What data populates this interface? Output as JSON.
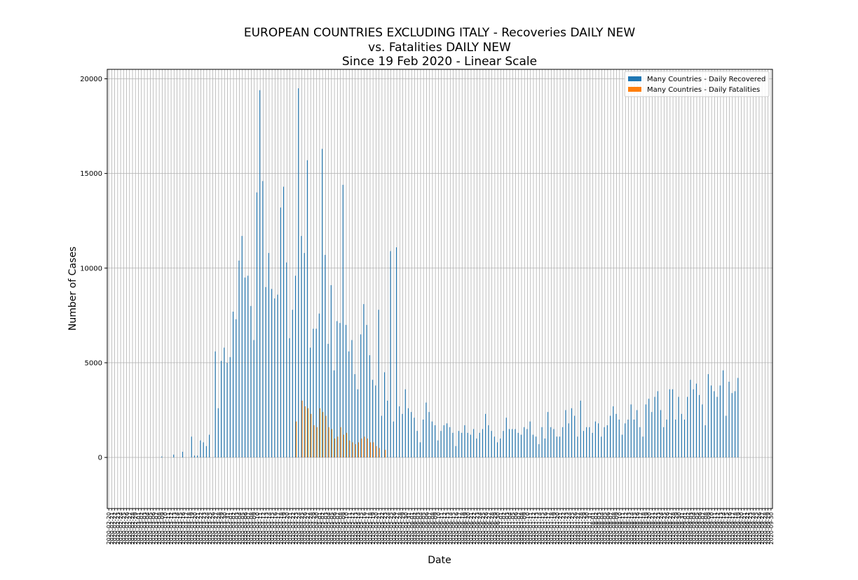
{
  "chart_data": {
    "type": "bar",
    "title_lines": [
      "EUROPEAN COUNTRIES EXCLUDING ITALY - Recoveries DAILY NEW",
      "vs. Fatalities DAILY NEW",
      "Since 19 Feb 2020 - Linear Scale"
    ],
    "xlabel": "Date",
    "ylabel": "Number of Cases",
    "ylim": [
      -2700,
      20500
    ],
    "yticks": [
      0,
      5000,
      10000,
      15000,
      20000
    ],
    "grid": true,
    "legend_position": "top-right",
    "x_start_label": "2020-02-20",
    "x_end_label": "2020-09-17",
    "series": [
      {
        "name": "Many Countries - Daily Recovered",
        "color": "#1f77b4",
        "values": [
          0,
          0,
          0,
          0,
          0,
          0,
          0,
          0,
          0,
          0,
          0,
          0,
          0,
          0,
          0,
          0,
          0,
          0,
          50,
          0,
          0,
          0,
          150,
          0,
          0,
          300,
          0,
          0,
          1100,
          100,
          100,
          900,
          800,
          600,
          1200,
          0,
          5600,
          2600,
          5100,
          5800,
          5000,
          5300,
          7700,
          7300,
          10400,
          11700,
          9500,
          9600,
          8000,
          6200,
          14000,
          19400,
          14600,
          9000,
          10800,
          8900,
          8400,
          8600,
          13200,
          14300,
          10300,
          6300,
          7800,
          9600,
          19500,
          11700,
          10800,
          15700,
          5800,
          6800,
          6800,
          7600,
          16300,
          10700,
          6000,
          9100,
          4600,
          7200,
          7100,
          14400,
          7000,
          5600,
          6200,
          4400,
          3600,
          6500,
          8100,
          7000,
          5400,
          4100,
          3800,
          7800,
          2200,
          4500,
          3000,
          10900,
          1900,
          11100,
          2700,
          2300,
          3600,
          2600,
          2400,
          2100,
          1400,
          800,
          2000,
          2900,
          2400,
          1900,
          1700,
          900,
          1400,
          1700,
          1800,
          1600,
          1300,
          600,
          1400,
          1300,
          1700,
          1300,
          1200,
          1500,
          1000,
          1300,
          1500,
          2300,
          1700,
          1400,
          1100,
          800,
          1000,
          1400,
          2100,
          1500,
          1500,
          1500,
          1300,
          1200,
          1600,
          1500,
          1900,
          1200,
          1100,
          700,
          1600,
          1000,
          2400,
          1600,
          1500,
          1100,
          1100,
          1600,
          2500,
          1800,
          2600,
          2200,
          1100,
          3000,
          1400,
          1600,
          1600,
          1300,
          1900,
          1800,
          1100,
          1600,
          1700,
          2200,
          2700,
          2300,
          2000,
          1200,
          1800,
          2000,
          2800,
          2000,
          2500,
          1600,
          1100,
          2800,
          3100,
          2400,
          3200,
          3500,
          2500,
          1600,
          2000,
          3600,
          3600,
          2000,
          3200,
          2300,
          2000,
          3200,
          4100,
          3600,
          3900,
          3300,
          2800,
          1700,
          4400,
          3800,
          3500,
          3200,
          3800,
          4600,
          2200,
          4000,
          3400,
          3500,
          4200
        ]
      },
      {
        "name": "Many Countries - Daily Fatalities",
        "color": "#ff7f0e",
        "values": [
          0,
          0,
          0,
          0,
          0,
          0,
          0,
          0,
          0,
          0,
          0,
          0,
          0,
          0,
          0,
          0,
          0,
          0,
          0,
          0,
          0,
          0,
          0,
          0,
          0,
          0,
          0,
          0,
          0,
          0,
          0,
          0,
          0,
          0,
          0,
          0,
          0,
          0,
          0,
          0,
          0,
          0,
          0,
          0,
          0,
          0,
          0,
          0,
          0,
          0,
          0,
          0,
          0,
          0,
          0,
          0,
          0,
          0,
          0,
          0,
          0,
          0,
          0,
          1900,
          0,
          3000,
          2700,
          2600,
          2300,
          1700,
          1600,
          2600,
          2400,
          2200,
          1600,
          1500,
          1000,
          1100,
          1600,
          1200,
          1300,
          900,
          800,
          700,
          800,
          1000,
          1100,
          1000,
          800,
          800,
          600,
          500,
          0,
          400,
          0,
          0,
          0,
          0,
          0,
          0,
          0,
          0,
          0,
          0,
          0,
          0,
          0,
          0,
          0,
          0,
          0,
          0,
          0,
          0,
          0,
          0,
          0,
          0,
          0,
          0,
          0,
          0,
          0,
          0,
          0,
          0,
          0,
          0,
          0,
          0,
          0,
          0,
          0,
          0,
          0,
          0,
          0,
          0,
          0,
          0,
          0,
          0,
          0,
          0,
          0,
          0,
          0,
          0,
          0,
          0,
          0,
          0,
          0,
          0,
          0,
          0,
          0,
          0,
          0,
          0,
          0,
          0,
          0,
          0,
          0,
          0,
          0,
          0,
          0,
          0,
          0,
          0,
          0,
          0,
          0,
          0,
          0,
          0,
          0,
          0,
          0,
          0,
          0,
          0,
          0,
          0,
          0,
          0,
          0,
          0,
          0,
          0,
          0,
          0,
          0,
          0,
          0,
          0,
          0,
          0,
          0,
          0,
          0,
          0,
          0,
          0,
          0,
          0,
          0,
          0,
          0,
          0,
          0,
          0,
          0,
          0,
          0,
          0,
          0,
          0,
          0,
          0,
          0,
          0
        ]
      }
    ]
  }
}
